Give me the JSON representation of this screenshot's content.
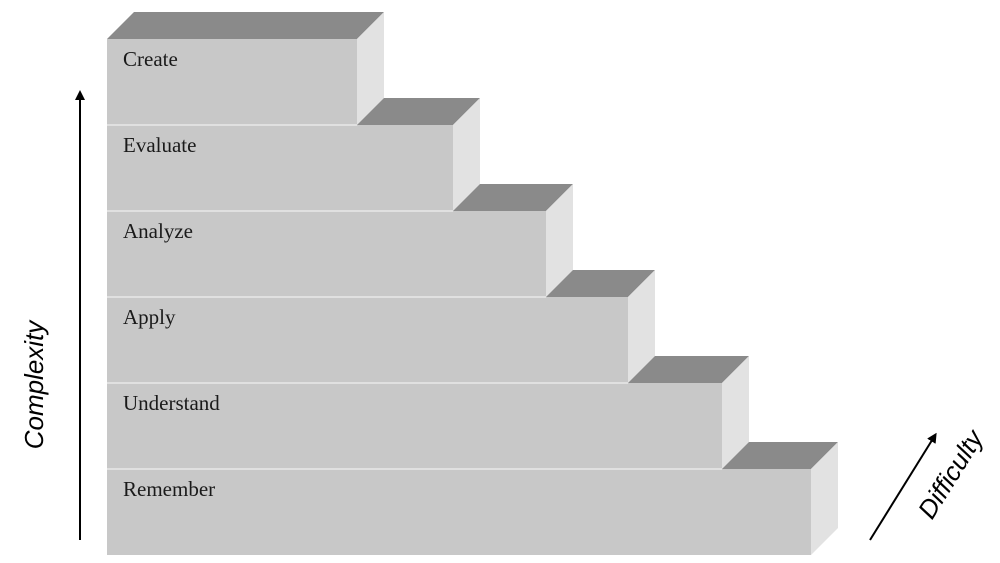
{
  "diagram": {
    "steps": [
      {
        "label": "Remember"
      },
      {
        "label": "Understand"
      },
      {
        "label": "Apply"
      },
      {
        "label": "Analyze"
      },
      {
        "label": "Evaluate"
      },
      {
        "label": "Create"
      }
    ],
    "vertical_axis_label": "Complexity",
    "diagonal_axis_label": "Difficulty",
    "colors": {
      "front": "#c8c8c8",
      "top": "#8a8a8a",
      "side": "#e2e2e2",
      "divider": "#e8e8e8",
      "axis": "#000000"
    }
  }
}
